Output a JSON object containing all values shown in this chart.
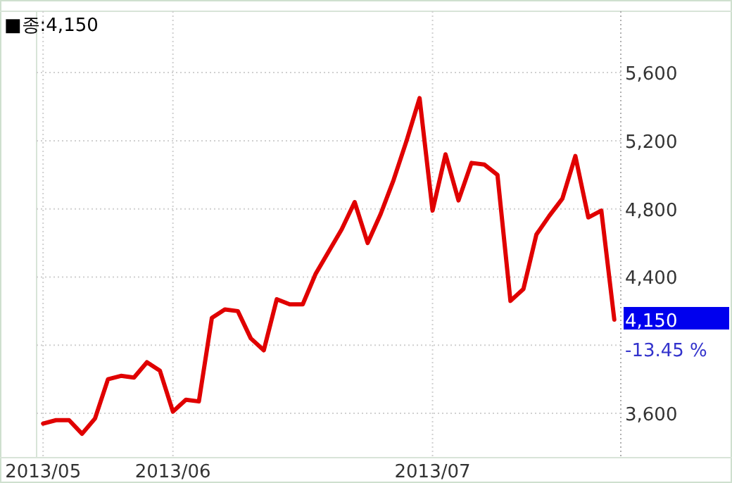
{
  "chart_data": {
    "type": "line",
    "categories": [
      "2013/05",
      null,
      null,
      null,
      null,
      null,
      null,
      null,
      null,
      null,
      "2013/06",
      null,
      null,
      null,
      null,
      null,
      null,
      null,
      null,
      null,
      null,
      null,
      null,
      null,
      null,
      null,
      null,
      null,
      null,
      null,
      "2013/07",
      null,
      null,
      null,
      null,
      null,
      null,
      null,
      null,
      null,
      null,
      null,
      null,
      null,
      null
    ],
    "series": [
      {
        "color": "#e00000",
        "values": [
          3540,
          3560,
          3560,
          3480,
          3570,
          3800,
          3820,
          3810,
          3900,
          3850,
          3610,
          3680,
          3670,
          4160,
          4210,
          4200,
          4040,
          3970,
          4270,
          4240,
          4240,
          4420,
          4550,
          4680,
          4840,
          4600,
          4770,
          4970,
          5200,
          5450,
          4790,
          5120,
          4850,
          5070,
          5060,
          5000,
          4260,
          4330,
          4650,
          4760,
          4860,
          5110,
          4750,
          4790,
          4150
        ]
      }
    ],
    "ylim": [
      3340,
      5960
    ],
    "yticks": [
      {
        "value": 3600,
        "label": "3,600"
      },
      {
        "value": 4000,
        "label": null
      },
      {
        "value": 4400,
        "label": "4,400"
      },
      {
        "value": 4800,
        "label": "4,800"
      },
      {
        "value": 5200,
        "label": "5,200"
      },
      {
        "value": 5600,
        "label": "5,600"
      }
    ],
    "grid": true,
    "annotations": [
      "■종:4,150",
      "4,150",
      "-13.45 %"
    ]
  }
}
